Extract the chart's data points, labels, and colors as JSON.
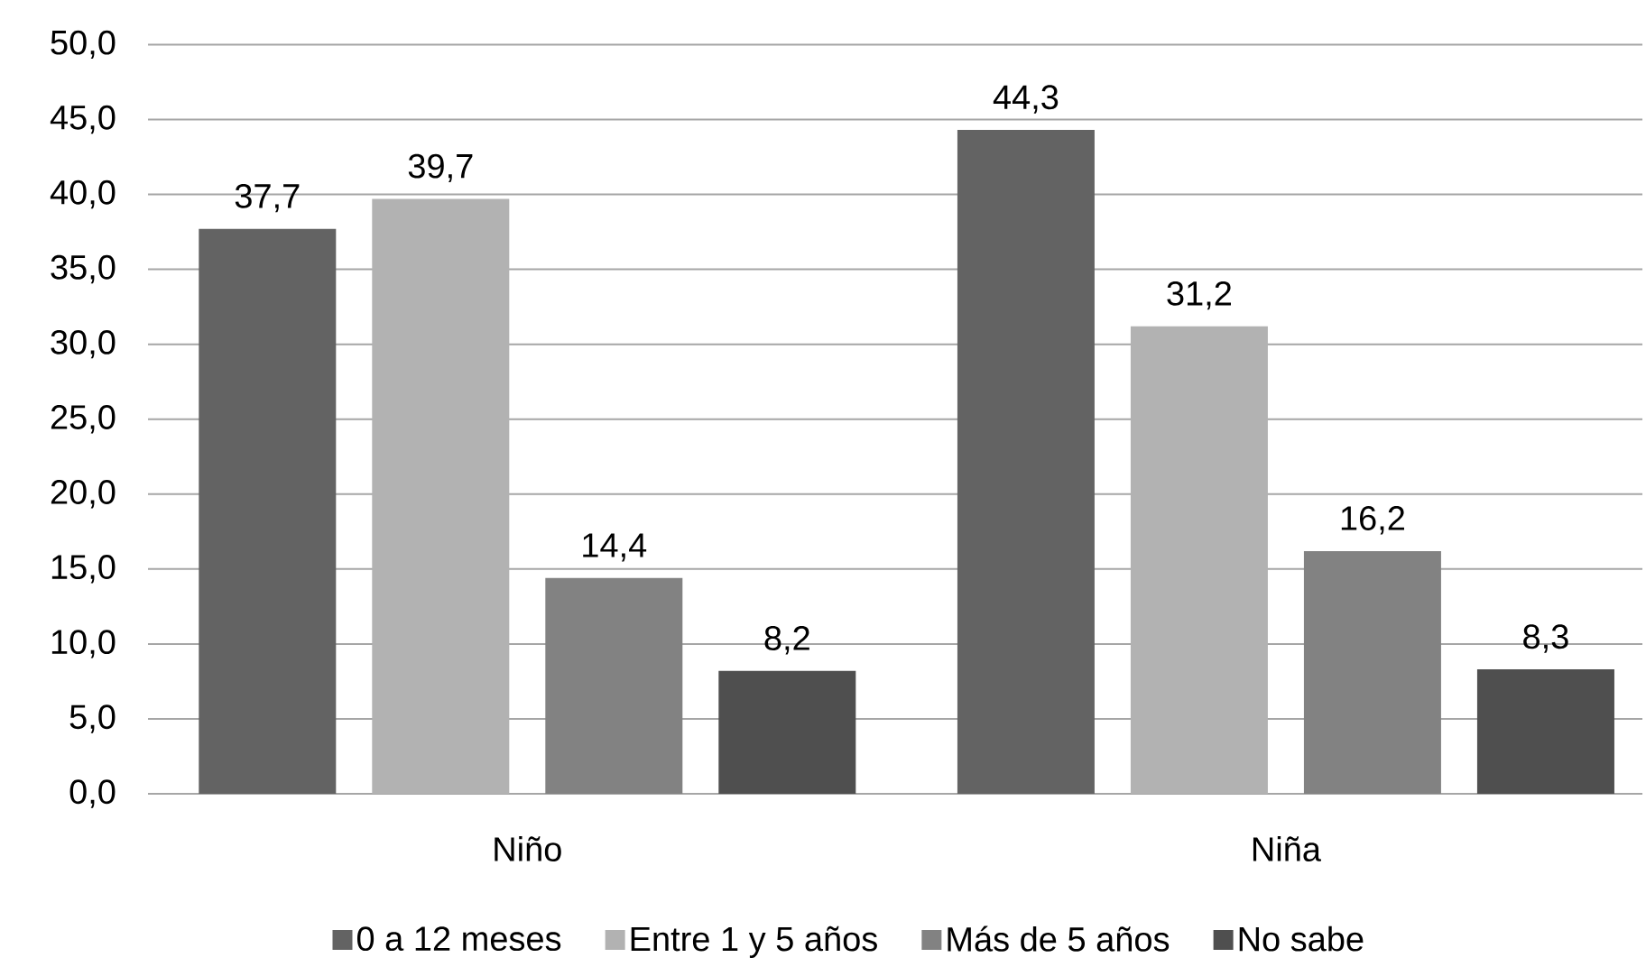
{
  "chart_data": {
    "type": "bar",
    "categories": [
      "Niño",
      "Niña"
    ],
    "series": [
      {
        "name": "0 a 12 meses",
        "color": "#636363",
        "values": [
          37.7,
          44.3
        ],
        "value_labels": [
          "37,7",
          "44,3"
        ]
      },
      {
        "name": "Entre 1 y 5 años",
        "color": "#b2b2b2",
        "values": [
          39.7,
          31.2
        ],
        "value_labels": [
          "39,7",
          "31,2"
        ]
      },
      {
        "name": "Más de 5 años",
        "color": "#828282",
        "values": [
          14.4,
          16.2
        ],
        "value_labels": [
          "14,4",
          "16,2"
        ]
      },
      {
        "name": "No sabe",
        "color": "#4f4f4f",
        "values": [
          8.2,
          8.3
        ],
        "value_labels": [
          "8,2",
          "8,3"
        ]
      }
    ],
    "ylim": [
      0,
      50
    ],
    "yticks": [
      {
        "value": 0,
        "label": "0,0"
      },
      {
        "value": 5,
        "label": "5,0"
      },
      {
        "value": 10,
        "label": "10,0"
      },
      {
        "value": 15,
        "label": "15,0"
      },
      {
        "value": 20,
        "label": "20,0"
      },
      {
        "value": 25,
        "label": "25,0"
      },
      {
        "value": 30,
        "label": "30,0"
      },
      {
        "value": 35,
        "label": "35,0"
      },
      {
        "value": 40,
        "label": "40,0"
      },
      {
        "value": 45,
        "label": "45,0"
      },
      {
        "value": 50,
        "label": "50,0"
      }
    ],
    "grid": "y",
    "legend": "bottom"
  }
}
